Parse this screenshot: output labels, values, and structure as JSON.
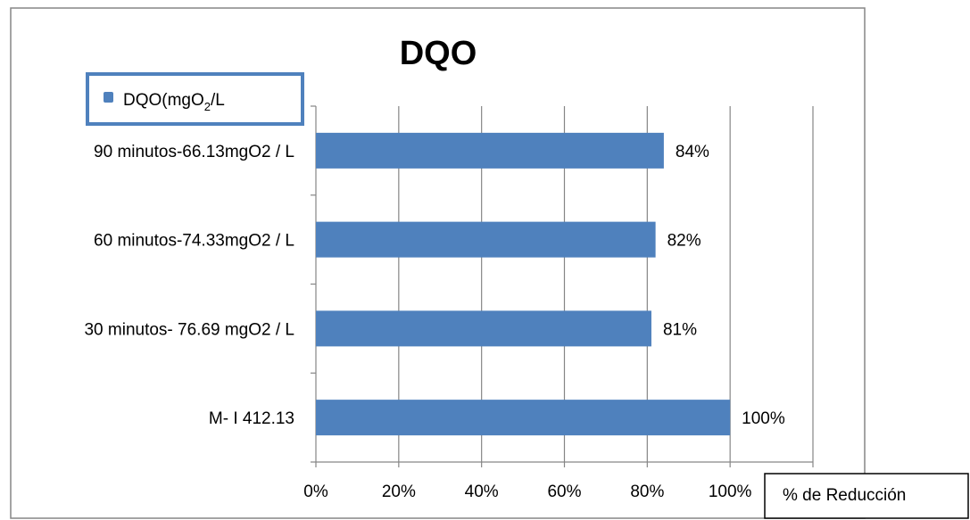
{
  "chart_data": {
    "type": "bar",
    "orientation": "horizontal",
    "title": "DQO",
    "categories": [
      "M- I 412.13",
      "30 minutos- 76.69 mgO2 / L",
      "60 minutos-74.33mgO2 / L",
      "90 minutos-66.13mgO2 / L"
    ],
    "series": [
      {
        "name": "DQO(mgO2/L",
        "values": [
          100,
          81,
          82,
          84
        ],
        "data_labels": [
          "100%",
          "81%",
          "82%",
          "84%"
        ]
      }
    ],
    "xlabel": "% de Reducción",
    "ylabel": "",
    "xlim": [
      0,
      120
    ],
    "x_ticks": [
      0,
      20,
      40,
      60,
      80,
      100,
      120
    ],
    "x_tick_labels": [
      "0%",
      "20%",
      "40%",
      "60%",
      "80%",
      "100%",
      ""
    ],
    "grid": "vertical",
    "legend_position": "top-left",
    "legend": {
      "text_main": "DQO(mgO",
      "text_sub": "2",
      "text_tail": "/L"
    },
    "colors": {
      "bar": "#4f81bd",
      "grid": "#868686",
      "frame": "#868686",
      "legend_border": "#4f81bd"
    }
  }
}
